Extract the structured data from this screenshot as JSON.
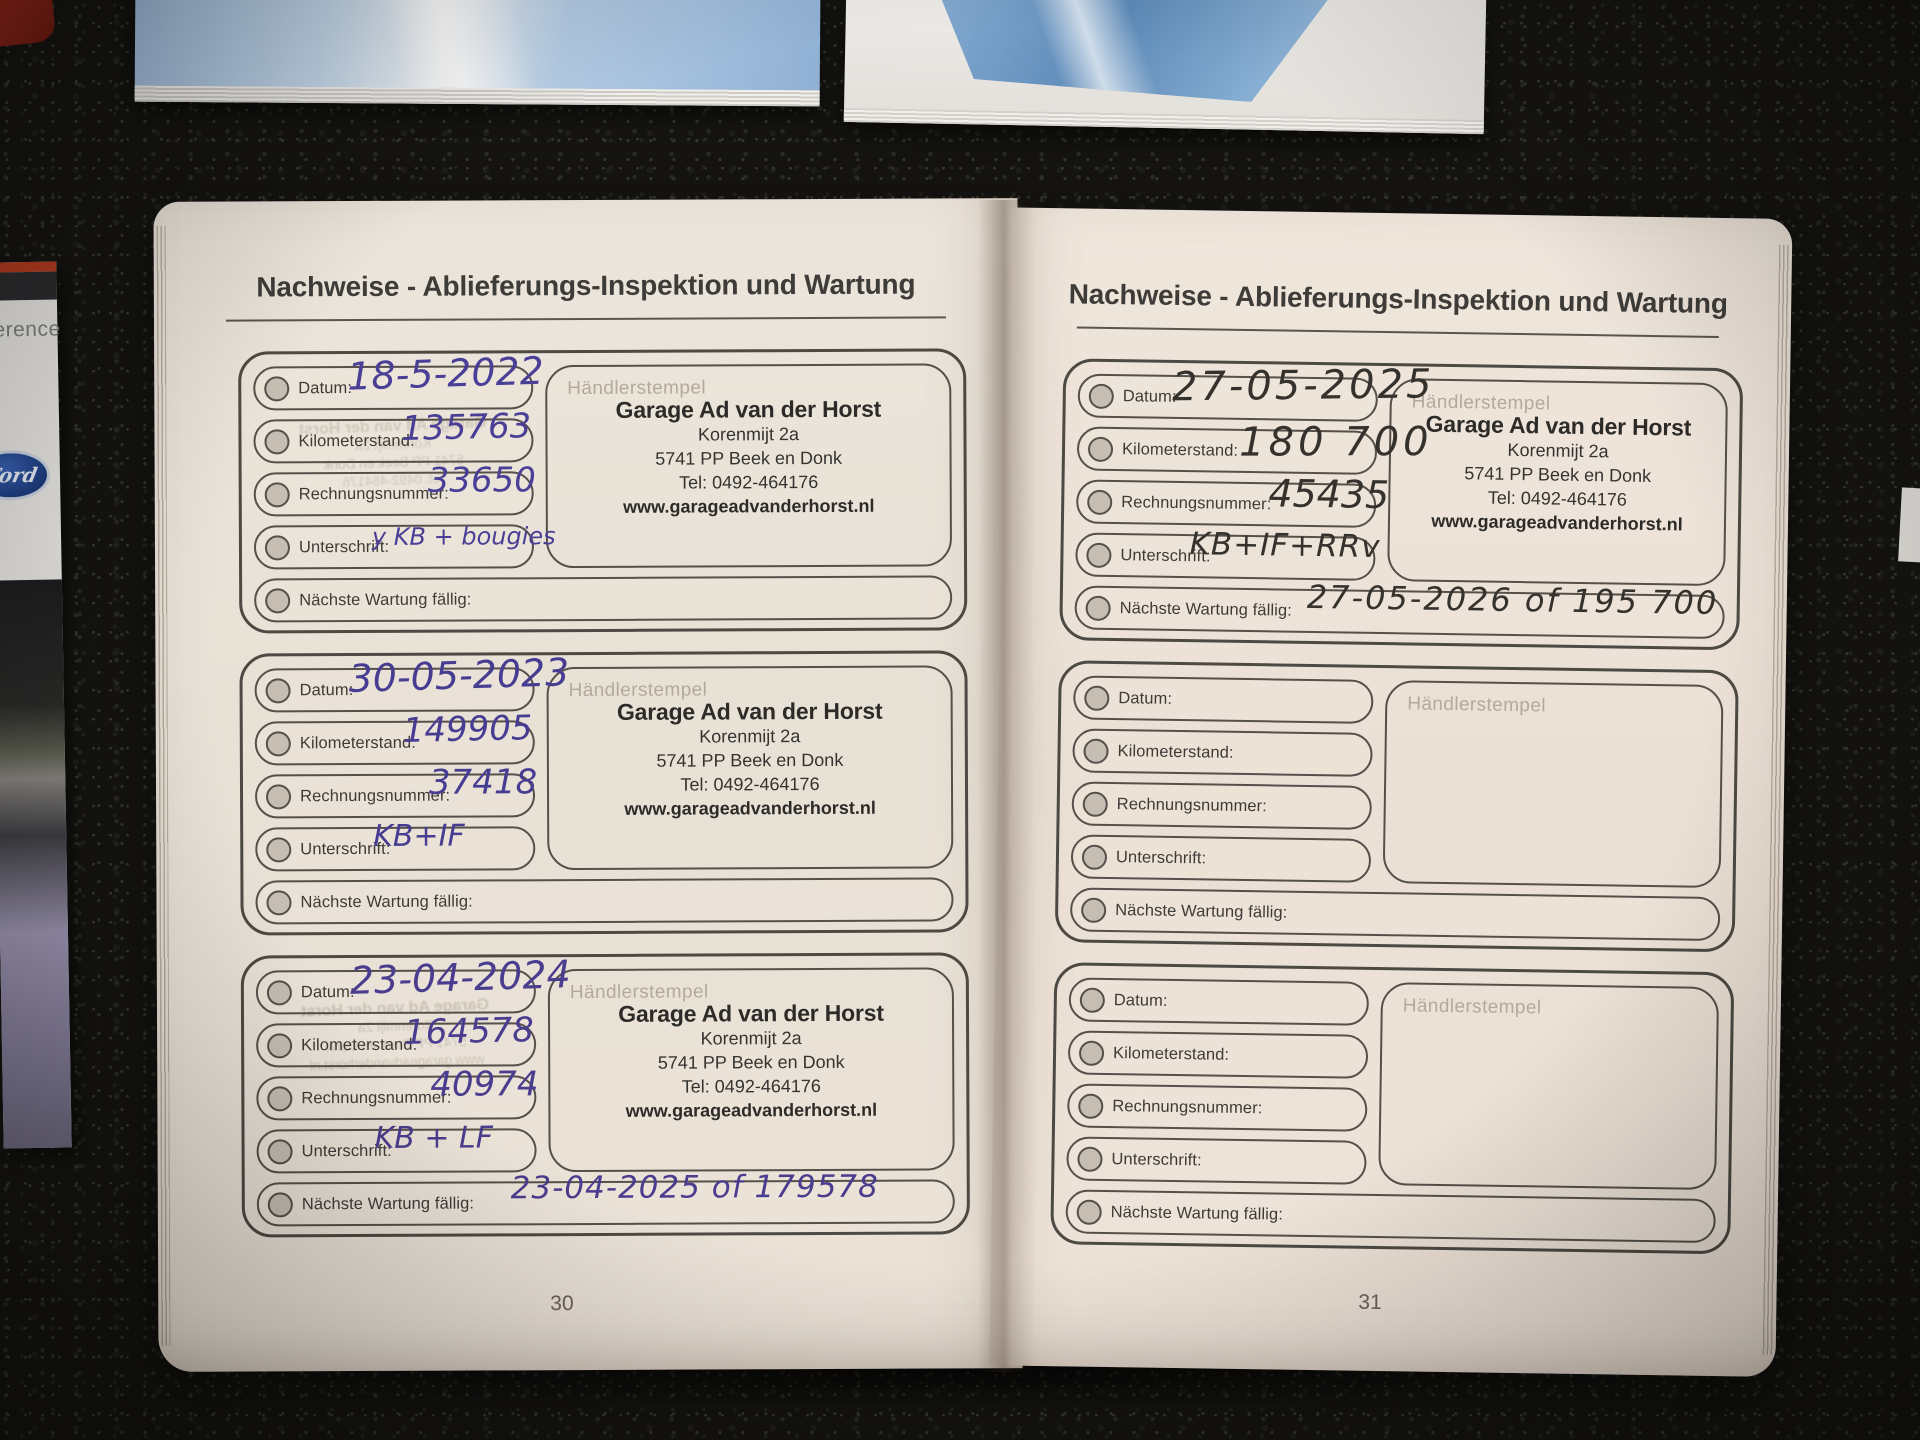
{
  "booklet": {
    "page_header": "Nachweise - Ablieferungs-Inspektion und Wartung",
    "field_labels": {
      "datum": "Datum:",
      "kilometerstand": "Kilometerstand:",
      "rechnungsnummer": "Rechnungsnummer:",
      "unterschrift": "Unterschrift:",
      "naechste_wartung": "Nächste Wartung fällig:",
      "haendlerstempel": "Händlerstempel"
    },
    "stamp": {
      "name": "Garage Ad van der Horst",
      "address1": "Korenmijt 2a",
      "address2": "5741 PP Beek en Donk",
      "tel": "Tel: 0492-464176",
      "web": "www.garageadvanderhorst.nl"
    },
    "pages": [
      {
        "page_number": "30",
        "entries": [
          {
            "datum": "18-5-2022",
            "kilometerstand": "135763",
            "rechnungsnummer": "33650",
            "unterschrift": "y KB + bougies",
            "naechste_wartung": "",
            "ink": "#4a3f96"
          },
          {
            "datum": "30-05-2023",
            "kilometerstand": "149905",
            "rechnungsnummer": "37418",
            "unterschrift": "KB+IF",
            "naechste_wartung": "",
            "ink": "#463c92"
          },
          {
            "datum": "23-04-2024",
            "kilometerstand": "164578",
            "rechnungsnummer": "40974",
            "unterschrift": "KB + LF",
            "naechste_wartung": "23-04-2025 of 179578",
            "ink": "#4a3c8e"
          }
        ]
      },
      {
        "page_number": "31",
        "entries": [
          {
            "datum": "27-05-2025",
            "kilometerstand": "180 700",
            "rechnungsnummer": "45435",
            "unterschrift": "KB+IF+RRv",
            "naechste_wartung": "27-05-2026 of 195 700",
            "ink": "#35312d"
          },
          {
            "datum": "",
            "kilometerstand": "",
            "rechnungsnummer": "",
            "unterschrift": "",
            "naechste_wartung": "",
            "ink": ""
          },
          {
            "datum": "",
            "kilometerstand": "",
            "rechnungsnummer": "",
            "unterschrift": "",
            "naechste_wartung": "",
            "ink": ""
          }
        ]
      }
    ]
  },
  "surroundings": {
    "left_book_partial_text": "erence",
    "ford_logo_text": "Ford"
  },
  "colors": {
    "ink_blue": "#463c92",
    "ink_dark": "#35312d",
    "paper": "#ece5db",
    "carpet": "#151411"
  }
}
